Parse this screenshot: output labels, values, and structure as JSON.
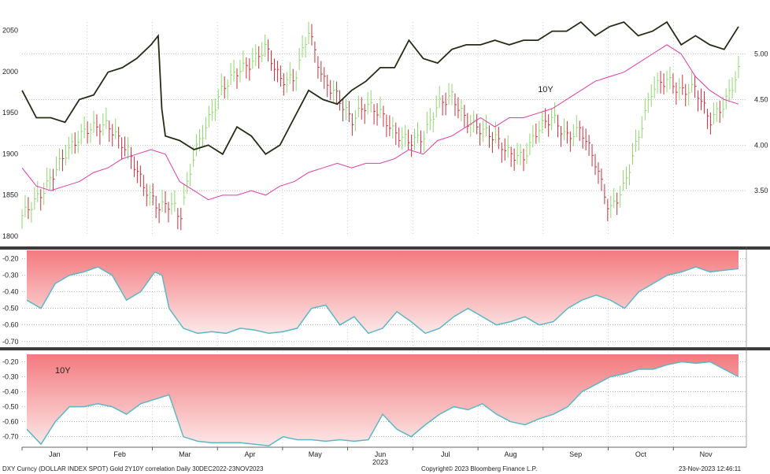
{
  "chart_data": [
    {
      "type": "line",
      "panel": "price",
      "left_axis": {
        "ticks": [
          1800,
          1850,
          1900,
          1950,
          2000,
          2050
        ],
        "range": [
          1800,
          2060
        ]
      },
      "right_axis": {
        "ticks": [
          "3.50",
          "4.00",
          "4.50",
          "5.00"
        ],
        "range": [
          3.0,
          5.35
        ]
      },
      "months": [
        "Jan",
        "Feb",
        "Mar",
        "Apr",
        "May",
        "Jun",
        "Jul",
        "Aug",
        "Sep",
        "Oct",
        "Nov"
      ],
      "year_label": "2023",
      "series": [
        {
          "name": "",
          "kind": "ohlc-close",
          "axis": "left",
          "x": [
            0.0,
            0.03,
            0.06,
            0.09,
            0.12,
            0.15,
            0.17,
            0.19,
            0.21,
            0.22,
            0.24,
            0.26,
            0.28,
            0.3,
            0.32,
            0.34,
            0.36,
            0.38,
            0.4,
            0.42,
            0.44,
            0.46,
            0.48,
            0.5,
            0.52,
            0.54,
            0.56,
            0.58,
            0.6,
            0.62,
            0.64,
            0.66,
            0.68,
            0.7,
            0.72,
            0.74,
            0.76,
            0.78,
            0.8,
            0.82,
            0.84,
            0.86,
            0.88,
            0.9,
            0.92,
            0.94,
            0.96,
            0.98,
            1.0
          ],
          "values": [
            1825,
            1855,
            1900,
            1930,
            1935,
            1900,
            1860,
            1835,
            1840,
            1820,
            1900,
            1940,
            1980,
            2000,
            2010,
            2030,
            1990,
            1990,
            2050,
            1990,
            1970,
            1940,
            1960,
            1950,
            1925,
            1915,
            1920,
            1960,
            1970,
            1940,
            1930,
            1920,
            1900,
            1895,
            1930,
            1945,
            1920,
            1930,
            1890,
            1830,
            1860,
            1920,
            1980,
            1990,
            1975,
            1980,
            1940,
            1960,
            2000
          ]
        },
        {
          "name": "",
          "kind": "line",
          "axis": "right",
          "color": "#222d14",
          "x": [
            0.0,
            0.02,
            0.04,
            0.06,
            0.08,
            0.1,
            0.12,
            0.14,
            0.16,
            0.18,
            0.19,
            0.195,
            0.2,
            0.22,
            0.24,
            0.26,
            0.28,
            0.3,
            0.32,
            0.34,
            0.36,
            0.38,
            0.4,
            0.42,
            0.44,
            0.46,
            0.48,
            0.5,
            0.52,
            0.54,
            0.56,
            0.58,
            0.6,
            0.62,
            0.64,
            0.66,
            0.68,
            0.7,
            0.72,
            0.74,
            0.76,
            0.78,
            0.8,
            0.82,
            0.84,
            0.86,
            0.88,
            0.9,
            0.92,
            0.94,
            0.96,
            0.98,
            1.0
          ],
          "values": [
            4.6,
            4.3,
            4.3,
            4.25,
            4.5,
            4.55,
            4.8,
            4.85,
            4.95,
            5.1,
            5.2,
            4.4,
            4.1,
            4.05,
            3.95,
            4.0,
            3.9,
            4.2,
            4.1,
            3.9,
            4.0,
            4.3,
            4.6,
            4.5,
            4.45,
            4.6,
            4.7,
            4.85,
            4.85,
            5.15,
            4.95,
            4.9,
            5.05,
            5.1,
            5.1,
            5.15,
            5.1,
            5.15,
            5.15,
            5.25,
            5.25,
            5.35,
            5.2,
            5.3,
            5.35,
            5.2,
            5.25,
            5.35,
            5.1,
            5.2,
            5.1,
            5.05,
            5.3
          ]
        },
        {
          "name": "",
          "kind": "line",
          "axis": "right",
          "color": "#e23ca8",
          "x": [
            0.0,
            0.02,
            0.04,
            0.06,
            0.08,
            0.1,
            0.12,
            0.14,
            0.16,
            0.18,
            0.2,
            0.22,
            0.24,
            0.26,
            0.28,
            0.3,
            0.32,
            0.34,
            0.36,
            0.38,
            0.4,
            0.42,
            0.44,
            0.46,
            0.48,
            0.5,
            0.52,
            0.54,
            0.56,
            0.58,
            0.6,
            0.62,
            0.64,
            0.66,
            0.68,
            0.7,
            0.72,
            0.74,
            0.76,
            0.78,
            0.8,
            0.82,
            0.84,
            0.86,
            0.88,
            0.9,
            0.92,
            0.94,
            0.96,
            0.98,
            1.0
          ],
          "values": [
            3.75,
            3.55,
            3.5,
            3.55,
            3.6,
            3.7,
            3.75,
            3.85,
            3.9,
            3.95,
            3.9,
            3.6,
            3.5,
            3.4,
            3.45,
            3.45,
            3.5,
            3.45,
            3.55,
            3.6,
            3.7,
            3.75,
            3.8,
            3.75,
            3.8,
            3.8,
            3.85,
            3.95,
            3.9,
            4.05,
            4.1,
            4.2,
            4.3,
            4.2,
            4.3,
            4.3,
            4.35,
            4.4,
            4.5,
            4.6,
            4.7,
            4.75,
            4.8,
            4.9,
            5.0,
            5.1,
            5.0,
            4.75,
            4.6,
            4.5,
            4.45
          ]
        }
      ],
      "annotations": [
        {
          "text": "10Y",
          "x": 0.72,
          "y": 4.58,
          "axis": "right"
        }
      ]
    },
    {
      "type": "area",
      "panel": "correlation-upper",
      "y_ticks": [
        "-0.20",
        "-0.30",
        "-0.40",
        "-0.50",
        "-0.60",
        "-0.70"
      ],
      "ylim": [
        -0.72,
        -0.15
      ],
      "x": [
        0.0,
        0.02,
        0.04,
        0.06,
        0.08,
        0.1,
        0.12,
        0.14,
        0.16,
        0.18,
        0.19,
        0.2,
        0.22,
        0.24,
        0.26,
        0.28,
        0.3,
        0.32,
        0.34,
        0.36,
        0.38,
        0.4,
        0.42,
        0.44,
        0.46,
        0.48,
        0.5,
        0.52,
        0.54,
        0.56,
        0.58,
        0.6,
        0.62,
        0.64,
        0.66,
        0.68,
        0.7,
        0.72,
        0.74,
        0.76,
        0.78,
        0.8,
        0.82,
        0.84,
        0.86,
        0.88,
        0.9,
        0.92,
        0.94,
        0.96,
        0.98,
        1.0
      ],
      "values": [
        -0.45,
        -0.5,
        -0.35,
        -0.3,
        -0.28,
        -0.25,
        -0.3,
        -0.45,
        -0.4,
        -0.28,
        -0.3,
        -0.5,
        -0.62,
        -0.65,
        -0.64,
        -0.65,
        -0.62,
        -0.63,
        -0.65,
        -0.64,
        -0.62,
        -0.5,
        -0.48,
        -0.6,
        -0.55,
        -0.65,
        -0.62,
        -0.52,
        -0.58,
        -0.65,
        -0.62,
        -0.55,
        -0.5,
        -0.55,
        -0.6,
        -0.58,
        -0.55,
        -0.6,
        -0.58,
        -0.5,
        -0.45,
        -0.42,
        -0.45,
        -0.5,
        -0.4,
        -0.35,
        -0.3,
        -0.28,
        -0.25,
        -0.28,
        -0.27,
        -0.26
      ]
    },
    {
      "type": "area",
      "panel": "correlation-lower",
      "y_ticks": [
        "-0.20",
        "-0.30",
        "-0.40",
        "-0.50",
        "-0.60",
        "-0.70"
      ],
      "ylim": [
        -0.77,
        -0.15
      ],
      "x": [
        0.0,
        0.02,
        0.04,
        0.06,
        0.08,
        0.1,
        0.12,
        0.14,
        0.16,
        0.18,
        0.2,
        0.22,
        0.24,
        0.26,
        0.28,
        0.3,
        0.32,
        0.34,
        0.36,
        0.38,
        0.4,
        0.42,
        0.44,
        0.46,
        0.48,
        0.5,
        0.52,
        0.54,
        0.56,
        0.58,
        0.6,
        0.62,
        0.64,
        0.66,
        0.68,
        0.7,
        0.72,
        0.74,
        0.76,
        0.78,
        0.8,
        0.82,
        0.84,
        0.86,
        0.88,
        0.9,
        0.92,
        0.94,
        0.96,
        0.98,
        1.0
      ],
      "values": [
        -0.65,
        -0.75,
        -0.6,
        -0.5,
        -0.5,
        -0.48,
        -0.5,
        -0.55,
        -0.48,
        -0.45,
        -0.42,
        -0.7,
        -0.73,
        -0.74,
        -0.74,
        -0.74,
        -0.75,
        -0.76,
        -0.7,
        -0.72,
        -0.72,
        -0.73,
        -0.72,
        -0.73,
        -0.72,
        -0.55,
        -0.65,
        -0.7,
        -0.62,
        -0.55,
        -0.5,
        -0.52,
        -0.48,
        -0.55,
        -0.6,
        -0.62,
        -0.58,
        -0.55,
        -0.5,
        -0.4,
        -0.35,
        -0.3,
        -0.28,
        -0.25,
        -0.25,
        -0.22,
        -0.2,
        -0.21,
        -0.2,
        -0.25,
        -0.3
      ]
    }
  ],
  "annotations_lower": {
    "text": "10Y"
  },
  "footer": {
    "left": "DXY Curncy (DOLLAR INDEX SPOT) Gold 2Y10Y correlation  Daily 30DEC2022-23NOV2023",
    "center": "Copyright© 2023 Bloomberg Finance L.P.",
    "right": "23-Nov-2023 12:46:11"
  },
  "colors": {
    "ohlc_up": "#8fd86b",
    "ohlc_down": "#c8323c",
    "line_dark": "#222d14",
    "line_pink": "#e23ca8",
    "area_fill_top": "#f37a7e",
    "area_fill_bottom": "#fde8e8",
    "area_edge": "#5ab8c6",
    "separator": "#3c3c3c"
  }
}
